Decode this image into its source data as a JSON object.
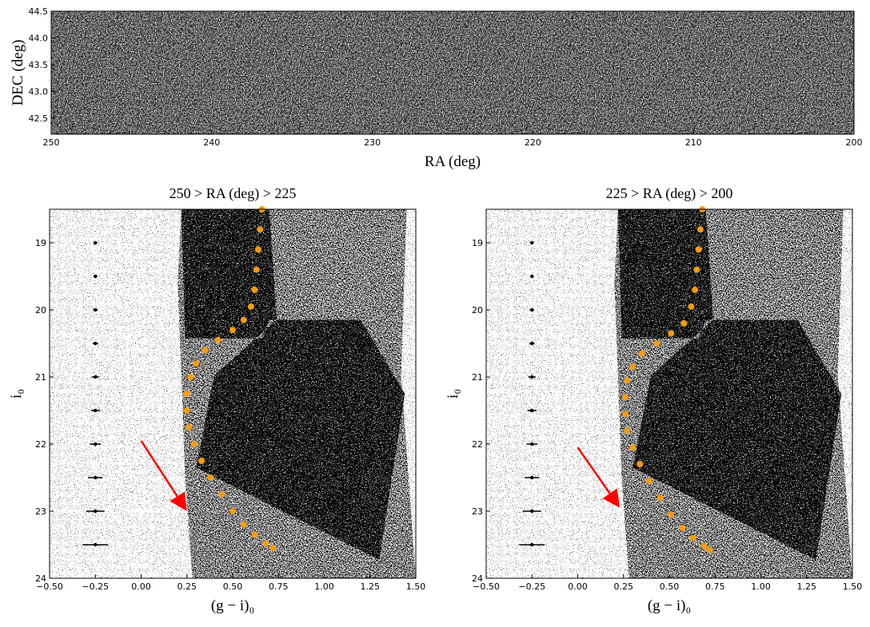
{
  "chart_data": [
    {
      "type": "image",
      "xlabel": "RA (deg)",
      "ylabel": "DEC (deg)",
      "xlim": [
        250,
        200
      ],
      "ylim": [
        42.2,
        44.5
      ],
      "xticks": [
        250,
        240,
        230,
        220,
        210,
        200
      ],
      "yticks": [
        42.5,
        {
          "value": 43,
          "label": "43.0"
        },
        43.5,
        {
          "value": 44,
          "label": "44.0"
        },
        44.5
      ]
    },
    {
      "type": "scatter",
      "title": "250 > RA (deg) > 225",
      "xlabel": "(g − i)₀",
      "ylabel": "i₀",
      "xlim": [
        -0.5,
        1.5
      ],
      "ylim": [
        24,
        18.5
      ],
      "xticks": [
        {
          "value": -0.5,
          "label": "−0.50"
        },
        {
          "value": -0.25,
          "label": "−0.25"
        },
        {
          "value": 0,
          "label": "0.00"
        },
        0.25,
        {
          "value": 0.5,
          "label": "0.50"
        },
        0.75,
        {
          "value": 1,
          "label": "1.00"
        },
        1.25,
        {
          "value": 1.5,
          "label": "1.50"
        }
      ],
      "yticks": [
        19,
        20,
        21,
        22,
        23,
        24
      ],
      "isochrone": {
        "color": "#f39c12",
        "x": [
          0.66,
          0.65,
          0.64,
          0.63,
          0.62,
          0.6,
          0.56,
          0.5,
          0.42,
          0.35,
          0.3,
          0.27,
          0.25,
          0.25,
          0.26,
          0.29,
          0.33,
          0.38,
          0.44,
          0.5,
          0.56,
          0.62,
          0.68,
          0.72
        ],
        "y": [
          18.5,
          18.8,
          19.1,
          19.4,
          19.7,
          19.95,
          20.15,
          20.3,
          20.45,
          20.6,
          20.8,
          21.0,
          21.25,
          21.5,
          21.75,
          22.0,
          22.25,
          22.5,
          22.75,
          23.0,
          23.2,
          23.35,
          23.48,
          23.55
        ]
      },
      "errorbars": {
        "color": "#000000",
        "x": [
          -0.25,
          -0.25,
          -0.25,
          -0.25,
          -0.25,
          -0.25,
          -0.25,
          -0.25,
          -0.25,
          -0.25
        ],
        "y": [
          19,
          19.5,
          20,
          20.5,
          21,
          21.5,
          22,
          22.5,
          23,
          23.5
        ],
        "xerr": [
          0.01,
          0.01,
          0.012,
          0.015,
          0.02,
          0.025,
          0.03,
          0.04,
          0.05,
          0.07
        ]
      },
      "arrow": {
        "color": "#ff0000",
        "x": [
          0,
          0.25
        ],
        "y": [
          21.95,
          23.0
        ]
      }
    },
    {
      "type": "scatter",
      "title": "225 > RA (deg) > 200",
      "xlabel": "(g − i)₀",
      "ylabel": "i₀",
      "xlim": [
        -0.5,
        1.5
      ],
      "ylim": [
        24,
        18.5
      ],
      "xticks": [
        {
          "value": -0.5,
          "label": "−0.50"
        },
        {
          "value": -0.25,
          "label": "−0.25"
        },
        {
          "value": 0,
          "label": "0.00"
        },
        0.25,
        {
          "value": 0.5,
          "label": "0.50"
        },
        0.75,
        {
          "value": 1,
          "label": "1.00"
        },
        1.25,
        {
          "value": 1.5,
          "label": "1.50"
        }
      ],
      "yticks": [
        19,
        20,
        21,
        22,
        23,
        24
      ],
      "isochrone": {
        "color": "#f39c12",
        "x": [
          0.68,
          0.67,
          0.66,
          0.65,
          0.64,
          0.62,
          0.58,
          0.51,
          0.43,
          0.35,
          0.3,
          0.27,
          0.26,
          0.26,
          0.27,
          0.3,
          0.34,
          0.39,
          0.45,
          0.51,
          0.57,
          0.63,
          0.69,
          0.72
        ],
        "y": [
          18.5,
          18.8,
          19.1,
          19.4,
          19.7,
          19.95,
          20.2,
          20.35,
          20.5,
          20.65,
          20.85,
          21.05,
          21.3,
          21.55,
          21.8,
          22.05,
          22.3,
          22.55,
          22.8,
          23.05,
          23.25,
          23.4,
          23.52,
          23.58
        ]
      },
      "errorbars": {
        "color": "#000000",
        "x": [
          -0.25,
          -0.25,
          -0.25,
          -0.25,
          -0.25,
          -0.25,
          -0.25,
          -0.25,
          -0.25,
          -0.25
        ],
        "y": [
          19,
          19.5,
          20,
          20.5,
          21,
          21.5,
          22,
          22.5,
          23,
          23.5
        ],
        "xerr": [
          0.01,
          0.01,
          0.012,
          0.015,
          0.02,
          0.025,
          0.03,
          0.04,
          0.05,
          0.07
        ]
      },
      "arrow": {
        "color": "#ff0000",
        "x": [
          0,
          0.23
        ],
        "y": [
          22.05,
          22.95
        ]
      }
    }
  ]
}
